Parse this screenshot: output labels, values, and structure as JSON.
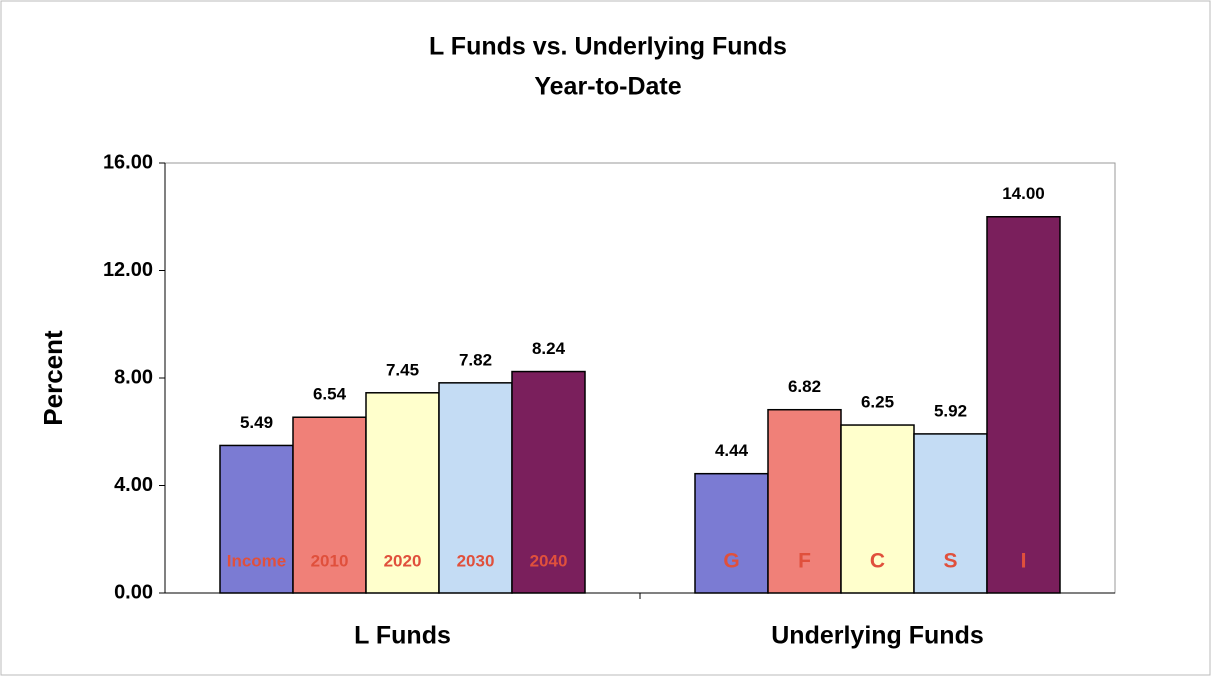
{
  "chart_data": {
    "type": "bar",
    "title": "L Funds vs. Underlying Funds",
    "subtitle": "Year-to-Date",
    "y_label": "Percent",
    "categories": [
      "L Funds",
      "Underlying Funds"
    ],
    "groups": [
      {
        "labels": [
          "Income",
          "2010",
          "2020",
          "2030",
          "2040"
        ],
        "values": [
          5.49,
          6.54,
          7.45,
          7.82,
          8.24
        ],
        "value_labels": [
          "5.49",
          "6.54",
          "7.45",
          "7.82",
          "8.24"
        ],
        "colors": [
          "#7b7bd3",
          "#f08078",
          "#ffffcc",
          "#c4dcf4",
          "#7a1f5c"
        ]
      },
      {
        "labels": [
          "G",
          "F",
          "C",
          "S",
          "I"
        ],
        "values": [
          4.44,
          6.82,
          6.25,
          5.92,
          14.0
        ],
        "value_labels": [
          "4.44",
          "6.82",
          "6.25",
          "5.92",
          "14.00"
        ],
        "colors": [
          "#7b7bd3",
          "#f08078",
          "#ffffcc",
          "#c4dcf4",
          "#7a1f5c"
        ]
      }
    ],
    "label_color": "#e0503c",
    "ylim": [
      0,
      16
    ],
    "yticks": [
      {
        "value": 0,
        "label": "0.00"
      },
      {
        "value": 4,
        "label": "4.00"
      },
      {
        "value": 8,
        "label": "8.00"
      },
      {
        "value": 12,
        "label": "12.00"
      },
      {
        "value": 16,
        "label": "16.00"
      }
    ],
    "grid": false
  }
}
